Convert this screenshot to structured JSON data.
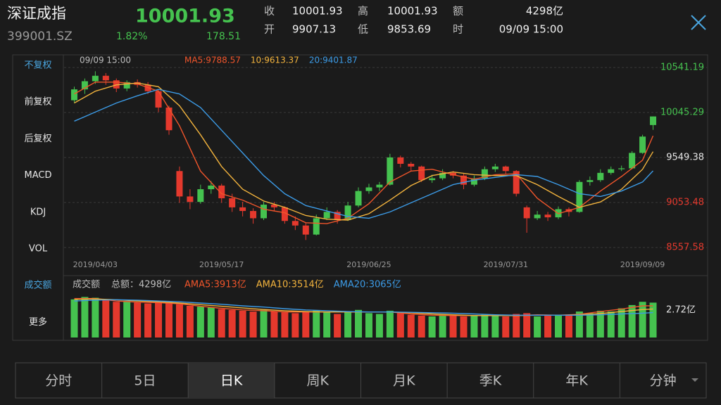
{
  "header": {
    "name": "深证成指",
    "code": "399001.SZ",
    "price": "10001.93",
    "change_pct": "1.82%",
    "change": "178.51"
  },
  "quote": [
    {
      "label": "收",
      "value": "10001.93"
    },
    {
      "label": "高",
      "value": "10001.93"
    },
    {
      "label": "额",
      "value": "4298亿"
    },
    {
      "label": "开",
      "value": "9907.13"
    },
    {
      "label": "低",
      "value": "9853.69"
    },
    {
      "label": "时",
      "value": "09/09 15:00"
    }
  ],
  "sidebar": [
    {
      "label": "不复权",
      "active": true
    },
    {
      "label": "前复权",
      "active": false
    },
    {
      "label": "后复权",
      "active": false
    },
    {
      "label": "MACD",
      "active": false
    },
    {
      "label": "KDJ",
      "active": false
    },
    {
      "label": "VOL",
      "active": false
    },
    {
      "label": "成交额",
      "active": true
    },
    {
      "label": "更多",
      "active": false
    }
  ],
  "tabs": [
    "分时",
    "5日",
    "日K",
    "周K",
    "月K",
    "季K",
    "年K",
    "分钟"
  ],
  "selected_tab": 2,
  "chart_data": [
    {
      "type": "candlestick",
      "time_label": "09/09 15:00",
      "up_color": "#45c24f",
      "down_color": "#e5392d",
      "ylim": [
        8557.58,
        10541.19
      ],
      "yticks": [
        10541.19,
        10045.29,
        9549.38,
        9053.48,
        8557.58
      ],
      "ytick_colors": [
        "#45c24f",
        "#45c24f",
        "#e6e6e6",
        "#e5392d",
        "#e5392d"
      ],
      "grid": true,
      "x_labels": [
        {
          "index": 2,
          "label": "2019/04/03"
        },
        {
          "index": 14,
          "label": "2019/05/17"
        },
        {
          "index": 28,
          "label": "2019/06/25"
        },
        {
          "index": 41,
          "label": "2019/07/31"
        },
        {
          "index": 54,
          "label": "2019/09/09"
        }
      ],
      "candles": [
        [
          10180,
          10330,
          10150,
          10300
        ],
        [
          10300,
          10420,
          10250,
          10390
        ],
        [
          10390,
          10500,
          10360,
          10450
        ],
        [
          10450,
          10480,
          10350,
          10400
        ],
        [
          10400,
          10420,
          10270,
          10310
        ],
        [
          10310,
          10400,
          10280,
          10380
        ],
        [
          10380,
          10410,
          10320,
          10350
        ],
        [
          10350,
          10380,
          10250,
          10280
        ],
        [
          10280,
          10300,
          10050,
          10100
        ],
        [
          10100,
          10120,
          9800,
          9850
        ],
        [
          9400,
          9450,
          9050,
          9120
        ],
        [
          9120,
          9200,
          8980,
          9060
        ],
        [
          9060,
          9250,
          9040,
          9200
        ],
        [
          9200,
          9290,
          9150,
          9240
        ],
        [
          9240,
          9260,
          9050,
          9100
        ],
        [
          9100,
          9150,
          8950,
          9000
        ],
        [
          9000,
          9060,
          8900,
          8960
        ],
        [
          8960,
          8990,
          8820,
          8880
        ],
        [
          8880,
          9060,
          8860,
          9030
        ],
        [
          9030,
          9060,
          8960,
          9000
        ],
        [
          9000,
          9010,
          8820,
          8850
        ],
        [
          8850,
          8900,
          8750,
          8800
        ],
        [
          8800,
          8830,
          8640,
          8700
        ],
        [
          8700,
          8920,
          8690,
          8880
        ],
        [
          8880,
          9000,
          8860,
          8950
        ],
        [
          8950,
          8970,
          8820,
          8860
        ],
        [
          8860,
          9060,
          8850,
          9020
        ],
        [
          9020,
          9220,
          9000,
          9180
        ],
        [
          9180,
          9260,
          9150,
          9220
        ],
        [
          9220,
          9280,
          9180,
          9250
        ],
        [
          9250,
          9590,
          9240,
          9550
        ],
        [
          9550,
          9570,
          9440,
          9480
        ],
        [
          9480,
          9500,
          9400,
          9450
        ],
        [
          9450,
          9460,
          9280,
          9300
        ],
        [
          9300,
          9360,
          9270,
          9320
        ],
        [
          9320,
          9420,
          9300,
          9380
        ],
        [
          9380,
          9400,
          9320,
          9350
        ],
        [
          9350,
          9370,
          9200,
          9250
        ],
        [
          9250,
          9350,
          9230,
          9320
        ],
        [
          9320,
          9450,
          9300,
          9420
        ],
        [
          9420,
          9480,
          9390,
          9450
        ],
        [
          9450,
          9460,
          9370,
          9400
        ],
        [
          9400,
          9410,
          9120,
          9150
        ],
        [
          9000,
          9020,
          8720,
          8880
        ],
        [
          8880,
          8960,
          8860,
          8920
        ],
        [
          8920,
          8950,
          8850,
          8890
        ],
        [
          8890,
          9010,
          8870,
          8980
        ],
        [
          8980,
          9000,
          8900,
          8950
        ],
        [
          8950,
          9300,
          8940,
          9280
        ],
        [
          9280,
          9340,
          9240,
          9300
        ],
        [
          9300,
          9420,
          9280,
          9380
        ],
        [
          9380,
          9450,
          9360,
          9420
        ],
        [
          9420,
          9460,
          9400,
          9430
        ],
        [
          9430,
          9620,
          9420,
          9600
        ],
        [
          9600,
          9800,
          9590,
          9780
        ],
        [
          9907.13,
          10001.93,
          9853.69,
          10001.93
        ]
      ],
      "ma_x": [
        0,
        2,
        4,
        6,
        8,
        10,
        12,
        14,
        16,
        18,
        20,
        22,
        24,
        26,
        28,
        30,
        32,
        34,
        36,
        38,
        40,
        42,
        44,
        46,
        48,
        50,
        52,
        54,
        55
      ],
      "series": [
        {
          "label": "MA5:9788.57",
          "color": "#f0552b",
          "values": [
            10250,
            10380,
            10380,
            10360,
            10280,
            9900,
            9400,
            9150,
            9080,
            8980,
            8940,
            8830,
            8820,
            8880,
            9040,
            9280,
            9400,
            9420,
            9360,
            9310,
            9360,
            9370,
            9100,
            8930,
            9000,
            9180,
            9340,
            9520,
            9788.57
          ]
        },
        {
          "label": "10:9613.37",
          "color": "#f2b33d",
          "values": [
            10150,
            10280,
            10350,
            10370,
            10330,
            10120,
            9800,
            9450,
            9200,
            9070,
            9000,
            8910,
            8870,
            8860,
            8930,
            9080,
            9240,
            9350,
            9390,
            9360,
            9350,
            9350,
            9250,
            9120,
            9000,
            9060,
            9200,
            9420,
            9613.37
          ]
        },
        {
          "label": "20:9401.87",
          "color": "#3c9be6",
          "values": [
            9950,
            10050,
            10150,
            10230,
            10300,
            10250,
            10100,
            9850,
            9600,
            9350,
            9150,
            9020,
            8960,
            8900,
            8880,
            8950,
            9050,
            9150,
            9250,
            9300,
            9330,
            9360,
            9340,
            9250,
            9150,
            9120,
            9180,
            9280,
            9401.87
          ]
        }
      ]
    },
    {
      "type": "bar",
      "title": "成交额",
      "total_label": "总额：4298亿",
      "axis_label": "2.72亿",
      "ylim": [
        0,
        5200
      ],
      "values": [
        4700,
        5000,
        4900,
        4600,
        4400,
        4500,
        4300,
        4200,
        4400,
        4300,
        4100,
        3900,
        3800,
        3700,
        3500,
        3400,
        3300,
        3200,
        3400,
        3200,
        3100,
        3000,
        3200,
        3300,
        3100,
        2900,
        3200,
        3400,
        3000,
        2900,
        3300,
        3000,
        2800,
        2700,
        2600,
        2800,
        2700,
        2600,
        2700,
        2800,
        2700,
        2600,
        2900,
        3000,
        2600,
        2700,
        2800,
        2700,
        3200,
        3000,
        3300,
        3200,
        3600,
        4000,
        4400,
        4298
      ],
      "ma_x": [
        0,
        2,
        4,
        6,
        8,
        10,
        12,
        14,
        16,
        18,
        20,
        22,
        24,
        26,
        28,
        30,
        32,
        34,
        36,
        38,
        40,
        42,
        44,
        46,
        48,
        50,
        52,
        54,
        55
      ],
      "series": [
        {
          "label": "AMA5:3913亿",
          "color": "#f0552b",
          "values": [
            4800,
            4800,
            4500,
            4350,
            4300,
            4150,
            3850,
            3600,
            3400,
            3300,
            3150,
            3150,
            3150,
            3150,
            3150,
            3150,
            2900,
            2750,
            2700,
            2700,
            2700,
            2700,
            2800,
            2750,
            2850,
            3200,
            3500,
            3900,
            3913
          ]
        },
        {
          "label": "AMA10:3514亿",
          "color": "#f2b33d",
          "values": [
            4700,
            4750,
            4650,
            4500,
            4400,
            4250,
            4050,
            3850,
            3650,
            3450,
            3300,
            3200,
            3150,
            3150,
            3150,
            3150,
            3050,
            2900,
            2800,
            2700,
            2700,
            2700,
            2750,
            2750,
            2800,
            2950,
            3200,
            3450,
            3514
          ]
        },
        {
          "label": "AMA20:3065亿",
          "color": "#3c9be6",
          "values": [
            4500,
            4600,
            4650,
            4600,
            4500,
            4400,
            4250,
            4100,
            3900,
            3750,
            3550,
            3400,
            3300,
            3200,
            3150,
            3150,
            3100,
            3050,
            3000,
            2900,
            2800,
            2750,
            2750,
            2750,
            2750,
            2800,
            2900,
            3000,
            3065
          ]
        }
      ]
    }
  ]
}
